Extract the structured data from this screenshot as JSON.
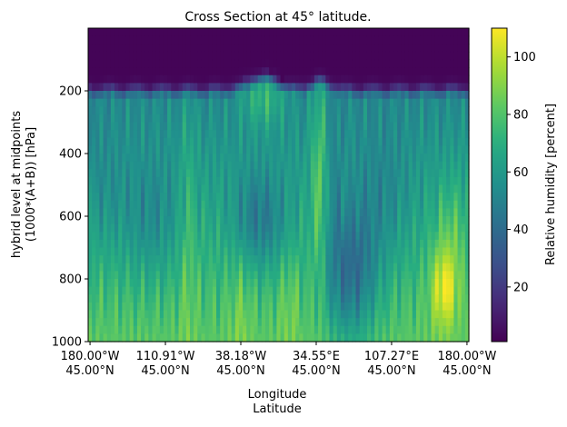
{
  "chart_data": {
    "type": "heatmap",
    "title": "Cross Section at 45° latitude.",
    "xlabel": [
      "Longitude",
      "Latitude"
    ],
    "ylabel": [
      "hybrid level at midpoints",
      "(1000*(A+B)) [hPa]"
    ],
    "colorbar_label": "Relative humidity [percent]",
    "colormap": "viridis",
    "colorbar_range": [
      1,
      110
    ],
    "colorbar_ticks": [
      "20",
      "40",
      "60",
      "80",
      "100"
    ],
    "colorbar_tick_values": [
      20,
      40,
      60,
      80,
      100
    ],
    "y_range": [
      0,
      1000
    ],
    "y_inverted": true,
    "y_ticks": [
      "200",
      "400",
      "600",
      "800",
      "1000"
    ],
    "y_tick_values": [
      200,
      400,
      600,
      800,
      1000
    ],
    "x_ticks": [
      {
        "lon": "180.00°W",
        "lat": "45.00°N"
      },
      {
        "lon": "110.91°W",
        "lat": "45.00°N"
      },
      {
        "lon": "38.18°W",
        "lat": "45.00°N"
      },
      {
        "lon": "34.55°E",
        "lat": "45.00°N"
      },
      {
        "lon": "107.27°E",
        "lat": "45.00°N"
      },
      {
        "lon": "180.00°W",
        "lat": "45.00°N"
      }
    ],
    "x_tick_positions": [
      0,
      20,
      40,
      60,
      80,
      100
    ],
    "x_count": 101,
    "levels_hPa": [
      0,
      25,
      50,
      75,
      100,
      125,
      150,
      175,
      200,
      225,
      250,
      275,
      300,
      325,
      350,
      375,
      400,
      425,
      450,
      475,
      500,
      525,
      550,
      575,
      600,
      625,
      650,
      675,
      700,
      725,
      750,
      775,
      800,
      825,
      850,
      875,
      900,
      925,
      950,
      975,
      1000
    ],
    "dry_layer_top_hPa": 195,
    "features": [
      {
        "name": "upper moist dome",
        "center_x": 46,
        "top_hPa": 160
      },
      {
        "name": "dry mid-level pocket",
        "center_x": 45,
        "center_hPa": 620,
        "value": 45
      },
      {
        "name": "dry column",
        "center_x": 69,
        "center_hPa": 800,
        "value": 38
      },
      {
        "name": "moist column",
        "center_x": 61,
        "center_hPa": 450,
        "value": 82
      },
      {
        "name": "near-surface maximum",
        "center_x": 94,
        "center_hPa": 830,
        "value": 108
      }
    ]
  }
}
